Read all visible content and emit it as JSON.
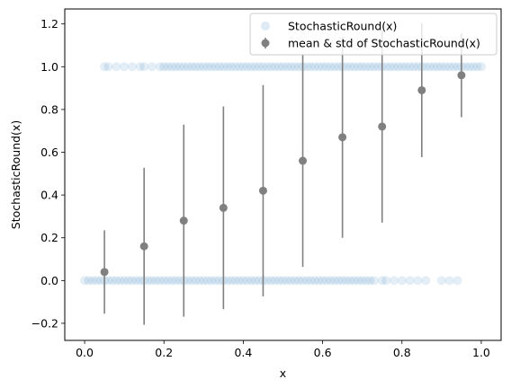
{
  "chart_data": {
    "type": "scatter",
    "xlabel": "x",
    "ylabel": "StochasticRound(x)",
    "xlim": [
      -0.05,
      1.05
    ],
    "ylim": [
      -0.28,
      1.27
    ],
    "xticks": [
      0.0,
      0.2,
      0.4,
      0.6,
      0.8,
      1.0
    ],
    "yticks": [
      -0.2,
      0.0,
      0.2,
      0.4,
      0.6,
      0.8,
      1.0,
      1.2
    ],
    "xtick_labels": [
      "0.0",
      "0.2",
      "0.4",
      "0.6",
      "0.8",
      "1.0"
    ],
    "ytick_labels": [
      "−0.2",
      "0.0",
      "0.2",
      "0.4",
      "0.6",
      "0.8",
      "1.0",
      "1.2"
    ],
    "grid": false,
    "legend_position": "top-right",
    "series": [
      {
        "name": "StochasticRound(x)",
        "kind": "scatter",
        "color": "#1f77b4",
        "alpha": 0.12,
        "ones_x": [
          0.05,
          0.06,
          0.08,
          0.1,
          0.12,
          0.14,
          0.15,
          0.17,
          0.19,
          0.2,
          0.21,
          0.22,
          0.23,
          0.24,
          0.25,
          0.26,
          0.27,
          0.28,
          0.29,
          0.3,
          0.31,
          0.32,
          0.33,
          0.34,
          0.35,
          0.36,
          0.37,
          0.38,
          0.39,
          0.4,
          0.41,
          0.42,
          0.43,
          0.44,
          0.45,
          0.46,
          0.47,
          0.48,
          0.49,
          0.5,
          0.51,
          0.52,
          0.53,
          0.54,
          0.55,
          0.56,
          0.57,
          0.58,
          0.59,
          0.6,
          0.61,
          0.62,
          0.63,
          0.64,
          0.65,
          0.66,
          0.67,
          0.68,
          0.69,
          0.7,
          0.71,
          0.72,
          0.73,
          0.74,
          0.75,
          0.76,
          0.77,
          0.78,
          0.79,
          0.8,
          0.81,
          0.82,
          0.83,
          0.84,
          0.85,
          0.86,
          0.87,
          0.88,
          0.89,
          0.9,
          0.91,
          0.92,
          0.93,
          0.94,
          0.95,
          0.96,
          0.97,
          0.98,
          0.99,
          1.0
        ],
        "zeros_x": [
          0.0,
          0.01,
          0.02,
          0.03,
          0.04,
          0.05,
          0.06,
          0.07,
          0.08,
          0.09,
          0.1,
          0.11,
          0.12,
          0.13,
          0.14,
          0.15,
          0.16,
          0.17,
          0.18,
          0.19,
          0.2,
          0.21,
          0.22,
          0.23,
          0.24,
          0.25,
          0.26,
          0.27,
          0.28,
          0.29,
          0.3,
          0.31,
          0.32,
          0.33,
          0.34,
          0.35,
          0.36,
          0.37,
          0.38,
          0.39,
          0.4,
          0.41,
          0.42,
          0.43,
          0.44,
          0.45,
          0.46,
          0.47,
          0.48,
          0.49,
          0.5,
          0.51,
          0.52,
          0.53,
          0.54,
          0.55,
          0.56,
          0.57,
          0.58,
          0.59,
          0.6,
          0.61,
          0.62,
          0.63,
          0.64,
          0.65,
          0.66,
          0.67,
          0.68,
          0.69,
          0.7,
          0.71,
          0.72,
          0.73,
          0.75,
          0.76,
          0.78,
          0.8,
          0.82,
          0.84,
          0.86,
          0.9,
          0.92,
          0.94
        ]
      },
      {
        "name": "mean & std of StochasticRound(x)",
        "kind": "errorbar",
        "color": "#808080",
        "x": [
          0.05,
          0.15,
          0.25,
          0.35,
          0.45,
          0.55,
          0.65,
          0.75,
          0.85,
          0.95
        ],
        "mean": [
          0.04,
          0.16,
          0.28,
          0.34,
          0.42,
          0.56,
          0.67,
          0.72,
          0.89,
          0.96
        ],
        "std": [
          0.195,
          0.367,
          0.449,
          0.474,
          0.494,
          0.496,
          0.47,
          0.449,
          0.313,
          0.196
        ]
      }
    ]
  }
}
